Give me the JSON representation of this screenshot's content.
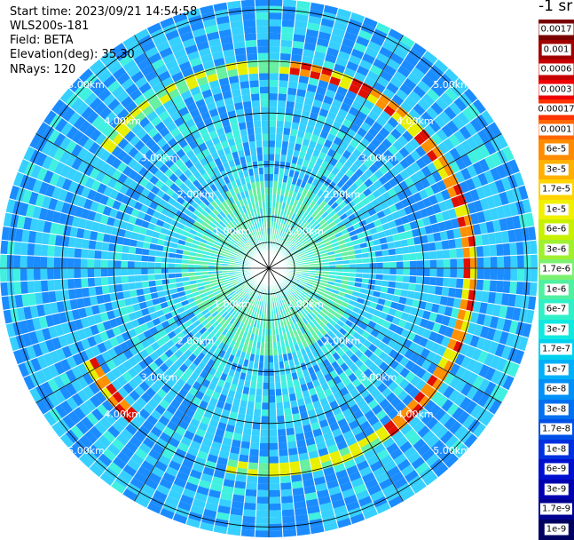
{
  "header": {
    "start_time": "Start time: 2023/09/21 14:54:58",
    "instrument": "WLS200s-181",
    "field": "Field: BETA",
    "elevation": "Elevation(deg): 35.30",
    "nrays": "NRays: 120"
  },
  "colorbar": {
    "unit_label": "-1 sr",
    "labels": [
      "0.0017",
      "0.001",
      "0.0006",
      "0.0003",
      "0.00017",
      "0.0001",
      "6e-5",
      "3e-5",
      "1.7e-5",
      "1e-5",
      "6e-6",
      "3e-6",
      "1.7e-6",
      "1e-6",
      "6e-7",
      "3e-7",
      "1.7e-7",
      "1e-7",
      "6e-8",
      "3e-8",
      "1.7e-8",
      "1e-8",
      "6e-9",
      "3e-9",
      "1.7e-9",
      "1e-9"
    ],
    "colors": [
      "#7a0000",
      "#a00000",
      "#c80000",
      "#ee0000",
      "#ff3300",
      "#ff6600",
      "#ff8c00",
      "#ffb000",
      "#ffd400",
      "#f0f000",
      "#c8f000",
      "#a0f030",
      "#7cf070",
      "#50f0a0",
      "#30f0c8",
      "#10e8e0",
      "#00d0f0",
      "#00b0f8",
      "#0090f8",
      "#0070f0",
      "#0050e8",
      "#0030e0",
      "#0010d0",
      "#0000b0",
      "#000090",
      "#000060"
    ]
  },
  "ppi": {
    "max_range_km": 5.2,
    "range_ring_labels": [
      "1.00km",
      "2.00km",
      "3.00km",
      "4.00km",
      "5.00km"
    ],
    "palette": {
      "background_blue": "#1a8cff",
      "cyan": "#36d0ff",
      "aqua": "#40f0e0",
      "green": "#66f0a0",
      "yellow": "#e8f000",
      "orange": "#ff9000",
      "red": "#e01000"
    }
  }
}
